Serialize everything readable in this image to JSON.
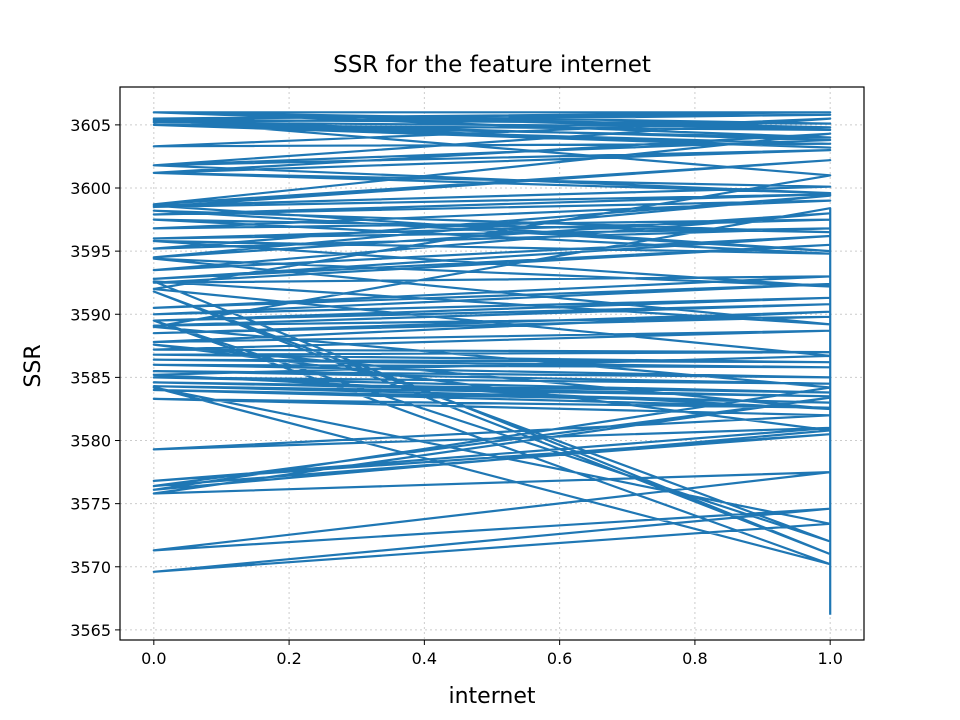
{
  "chart_data": {
    "type": "line",
    "title": "SSR for the feature internet",
    "xlabel": "internet",
    "ylabel": "SSR",
    "xlim": [
      -0.05,
      1.05
    ],
    "ylim": [
      3564.2,
      3608.0
    ],
    "xticks": [
      0.0,
      0.2,
      0.4,
      0.6,
      0.8,
      1.0
    ],
    "xtick_labels": [
      "0.0",
      "0.2",
      "0.4",
      "0.6",
      "0.8",
      "1.0"
    ],
    "yticks": [
      3565,
      3570,
      3575,
      3580,
      3585,
      3590,
      3595,
      3600,
      3605
    ],
    "ytick_labels": [
      "3565",
      "3570",
      "3575",
      "3580",
      "3585",
      "3590",
      "3595",
      "3600",
      "3605"
    ],
    "grid": true,
    "series": [
      {
        "color": "#1f77b4",
        "x": [
          0,
          1,
          0,
          1,
          0,
          1,
          0,
          1,
          0,
          1,
          0,
          1,
          0,
          1,
          0,
          1,
          0,
          1,
          0,
          1,
          0,
          1,
          0,
          1,
          0,
          1,
          0,
          1,
          0,
          1,
          0,
          1,
          0,
          1,
          0,
          1,
          0,
          1,
          0,
          1,
          0,
          1,
          0,
          1,
          0,
          1,
          0,
          1,
          0,
          1,
          0,
          1,
          0,
          1,
          0,
          1,
          0,
          1,
          0,
          1,
          0,
          1,
          0,
          1,
          0,
          1,
          0,
          1,
          0,
          1,
          0,
          1,
          0,
          1,
          0,
          1,
          0,
          1,
          0,
          1,
          0,
          1,
          0,
          1,
          0,
          1,
          0,
          1,
          0,
          1,
          0,
          1,
          0,
          1,
          0,
          1,
          0,
          1,
          0,
          1,
          0,
          1,
          0,
          1,
          0,
          1,
          0,
          1,
          0,
          1,
          0,
          1,
          0,
          1,
          0,
          1,
          0,
          1,
          0,
          1,
          1
        ],
        "y": [
          3606.0,
          3606.0,
          3605.5,
          3605.8,
          3605.2,
          3604.8,
          3606.0,
          3604.0,
          3605.0,
          3603.5,
          3603.3,
          3605.5,
          3601.8,
          3603.0,
          3601.2,
          3604.3,
          3598.7,
          3602.2,
          3598.5,
          3599.5,
          3597.9,
          3599.0,
          3596.8,
          3597.5,
          3596.0,
          3596.8,
          3595.2,
          3599.4,
          3594.5,
          3598.0,
          3593.5,
          3596.2,
          3592.8,
          3595.5,
          3592.5,
          3593.0,
          3590.5,
          3592.4,
          3590.0,
          3591.3,
          3589.5,
          3590.8,
          3589.1,
          3589.8,
          3588.5,
          3590.2,
          3587.8,
          3588.7,
          3587.2,
          3587.0,
          3586.8,
          3586.2,
          3586.4,
          3585.8,
          3586.0,
          3585.0,
          3585.5,
          3584.5,
          3585.0,
          3583.8,
          3584.6,
          3583.5,
          3584.3,
          3583.0,
          3584.0,
          3582.6,
          3583.3,
          3582.0,
          3579.3,
          3581.0,
          3576.8,
          3580.5,
          3576.4,
          3583.4,
          3575.8,
          3577.5,
          3571.3,
          3574.6,
          3569.6,
          3573.4,
          3584.2,
          3570.2,
          3589.5,
          3572.0,
          3591.8,
          3571.0,
          3592.6,
          3589.2,
          3594.4,
          3592.2,
          3595.8,
          3594.8,
          3597.5,
          3596.5,
          3598.2,
          3595.0,
          3598.6,
          3600.1,
          3601.2,
          3599.6,
          3601.8,
          3603.8,
          3605.3,
          3603.2,
          3605.0,
          3604.6,
          3606.0,
          3605.1,
          3605.4,
          3601.0,
          3592.0,
          3586.7,
          3585.2,
          3582.5,
          3587.6,
          3580.8,
          3576.1,
          3584.2,
          3589.0,
          3598.4,
          3566.2
        ]
      }
    ]
  }
}
